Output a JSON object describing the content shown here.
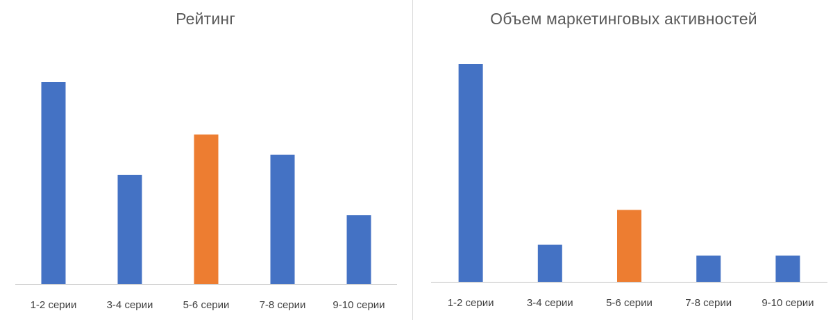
{
  "colors": {
    "default_bar": "#4472C4",
    "highlight_bar": "#ED7D31",
    "axis_line": "#BFBFBF",
    "divider": "#D9D9D9",
    "title_text": "#595959",
    "label_text": "#404040"
  },
  "chart_data": [
    {
      "type": "bar",
      "title": "Рейтинг",
      "categories": [
        "1-2 серии",
        "3-4 серии",
        "5-6 серии",
        "7-8 серии",
        "9-10 серии"
      ],
      "values": [
        100,
        54,
        74,
        64,
        34
      ],
      "highlight_index": 2,
      "ylim": [
        0,
        100
      ],
      "grid": false,
      "legend": "none"
    },
    {
      "type": "bar",
      "title": "Объем маркетинговых активностей",
      "categories": [
        "1-2 серии",
        "3-4 серии",
        "5-6 серии",
        "7-8 серии",
        "9-10 серии"
      ],
      "values": [
        100,
        17,
        33,
        12,
        12
      ],
      "highlight_index": 2,
      "ylim": [
        0,
        100
      ],
      "grid": false,
      "legend": "none"
    }
  ]
}
